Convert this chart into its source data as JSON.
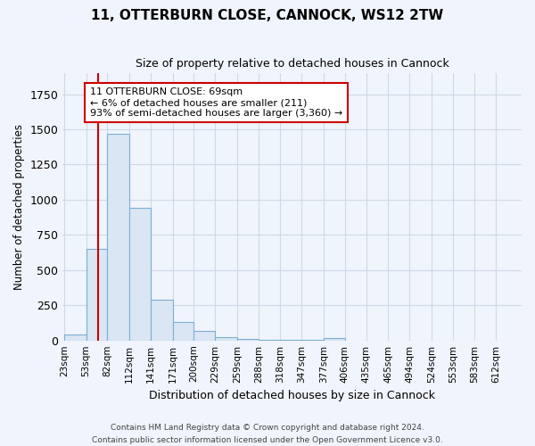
{
  "title": "11, OTTERBURN CLOSE, CANNOCK, WS12 2TW",
  "subtitle": "Size of property relative to detached houses in Cannock",
  "xlabel": "Distribution of detached houses by size in Cannock",
  "ylabel": "Number of detached properties",
  "bin_edges": [
    23,
    53,
    82,
    112,
    141,
    171,
    200,
    229,
    259,
    288,
    318,
    347,
    377,
    406,
    435,
    465,
    494,
    524,
    553,
    583,
    612
  ],
  "bar_heights": [
    40,
    650,
    1470,
    940,
    290,
    130,
    70,
    25,
    10,
    5,
    3,
    2,
    15,
    0,
    0,
    0,
    0,
    0,
    0,
    0
  ],
  "bar_color": "#dae6f3",
  "bar_edge_color": "#7bafd4",
  "property_size": 69,
  "red_line_color": "#cc0000",
  "annotation_line1": "11 OTTERBURN CLOSE: 69sqm",
  "annotation_line2": "← 6% of detached houses are smaller (211)",
  "annotation_line3": "93% of semi-detached houses are larger (3,360) →",
  "annotation_box_color": "#ffffff",
  "annotation_box_edge_color": "#cc0000",
  "ylim": [
    0,
    1900
  ],
  "background_color": "#f0f4fc",
  "grid_color": "#d0d8e8",
  "footer_line1": "Contains HM Land Registry data © Crown copyright and database right 2024.",
  "footer_line2": "Contains public sector information licensed under the Open Government Licence v3.0."
}
